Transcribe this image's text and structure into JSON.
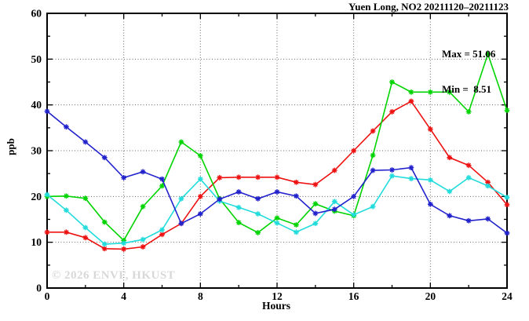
{
  "chart_data": {
    "type": "line",
    "title": "Yuen Long, NO2 20211120–20211123",
    "xlabel": "Hours",
    "ylabel": "ppb",
    "xlim": [
      0,
      24
    ],
    "ylim": [
      0,
      60
    ],
    "x_major_ticks": [
      0,
      4,
      8,
      12,
      16,
      20,
      24
    ],
    "x_minor_step": 2,
    "y_major_ticks": [
      0,
      10,
      20,
      30,
      40,
      50,
      60
    ],
    "y_minor_step": 5,
    "grid": "dotted lines at major ticks, legend absent",
    "stats": {
      "max": 51.06,
      "min": 8.51
    },
    "stats_display": {
      "max_line": "Max = 51.06",
      "min_line": "Min =  8.51"
    },
    "watermark": "© 2026 ENVF, HKUST",
    "x": [
      0,
      1,
      2,
      3,
      4,
      5,
      6,
      7,
      8,
      9,
      10,
      11,
      12,
      13,
      14,
      15,
      16,
      17,
      18,
      19,
      20,
      21,
      22,
      23,
      24
    ],
    "series": [
      {
        "name": "red-series",
        "color": "#ee1111",
        "values": [
          12.2,
          12.2,
          11.0,
          8.6,
          8.5,
          9.0,
          11.7,
          14.1,
          20.0,
          24.1,
          24.2,
          24.2,
          24.2,
          23.1,
          22.6,
          25.7,
          30.0,
          34.3,
          38.5,
          40.8,
          34.7,
          28.5,
          26.8,
          23.1,
          18.2
        ]
      },
      {
        "name": "green-series",
        "color": "#00d400",
        "values": [
          20.0,
          20.1,
          19.6,
          14.4,
          10.4,
          17.8,
          22.3,
          31.9,
          28.9,
          19.5,
          14.3,
          12.1,
          15.3,
          13.8,
          18.4,
          16.8,
          15.8,
          29.0,
          45.0,
          42.8,
          42.8,
          42.8,
          38.5,
          51.1,
          38.8
        ]
      },
      {
        "name": "cyan-series",
        "color": "#22dcdc",
        "values": [
          20.4,
          17.0,
          13.2,
          9.6,
          9.8,
          10.6,
          12.7,
          19.5,
          23.8,
          19.0,
          17.6,
          16.2,
          14.2,
          12.2,
          14.1,
          18.9,
          16.0,
          17.8,
          24.5,
          23.9,
          23.6,
          21.1,
          24.1,
          22.3,
          19.8
        ]
      },
      {
        "name": "blue-series",
        "color": "#2222cc",
        "values": [
          38.6,
          35.2,
          31.9,
          28.5,
          24.1,
          25.4,
          23.8,
          14.1,
          16.2,
          19.4,
          21.0,
          19.5,
          21.0,
          20.1,
          16.3,
          17.2,
          20.0,
          25.7,
          25.8,
          26.3,
          18.3,
          15.8,
          14.7,
          15.1,
          12.0
        ]
      }
    ]
  }
}
